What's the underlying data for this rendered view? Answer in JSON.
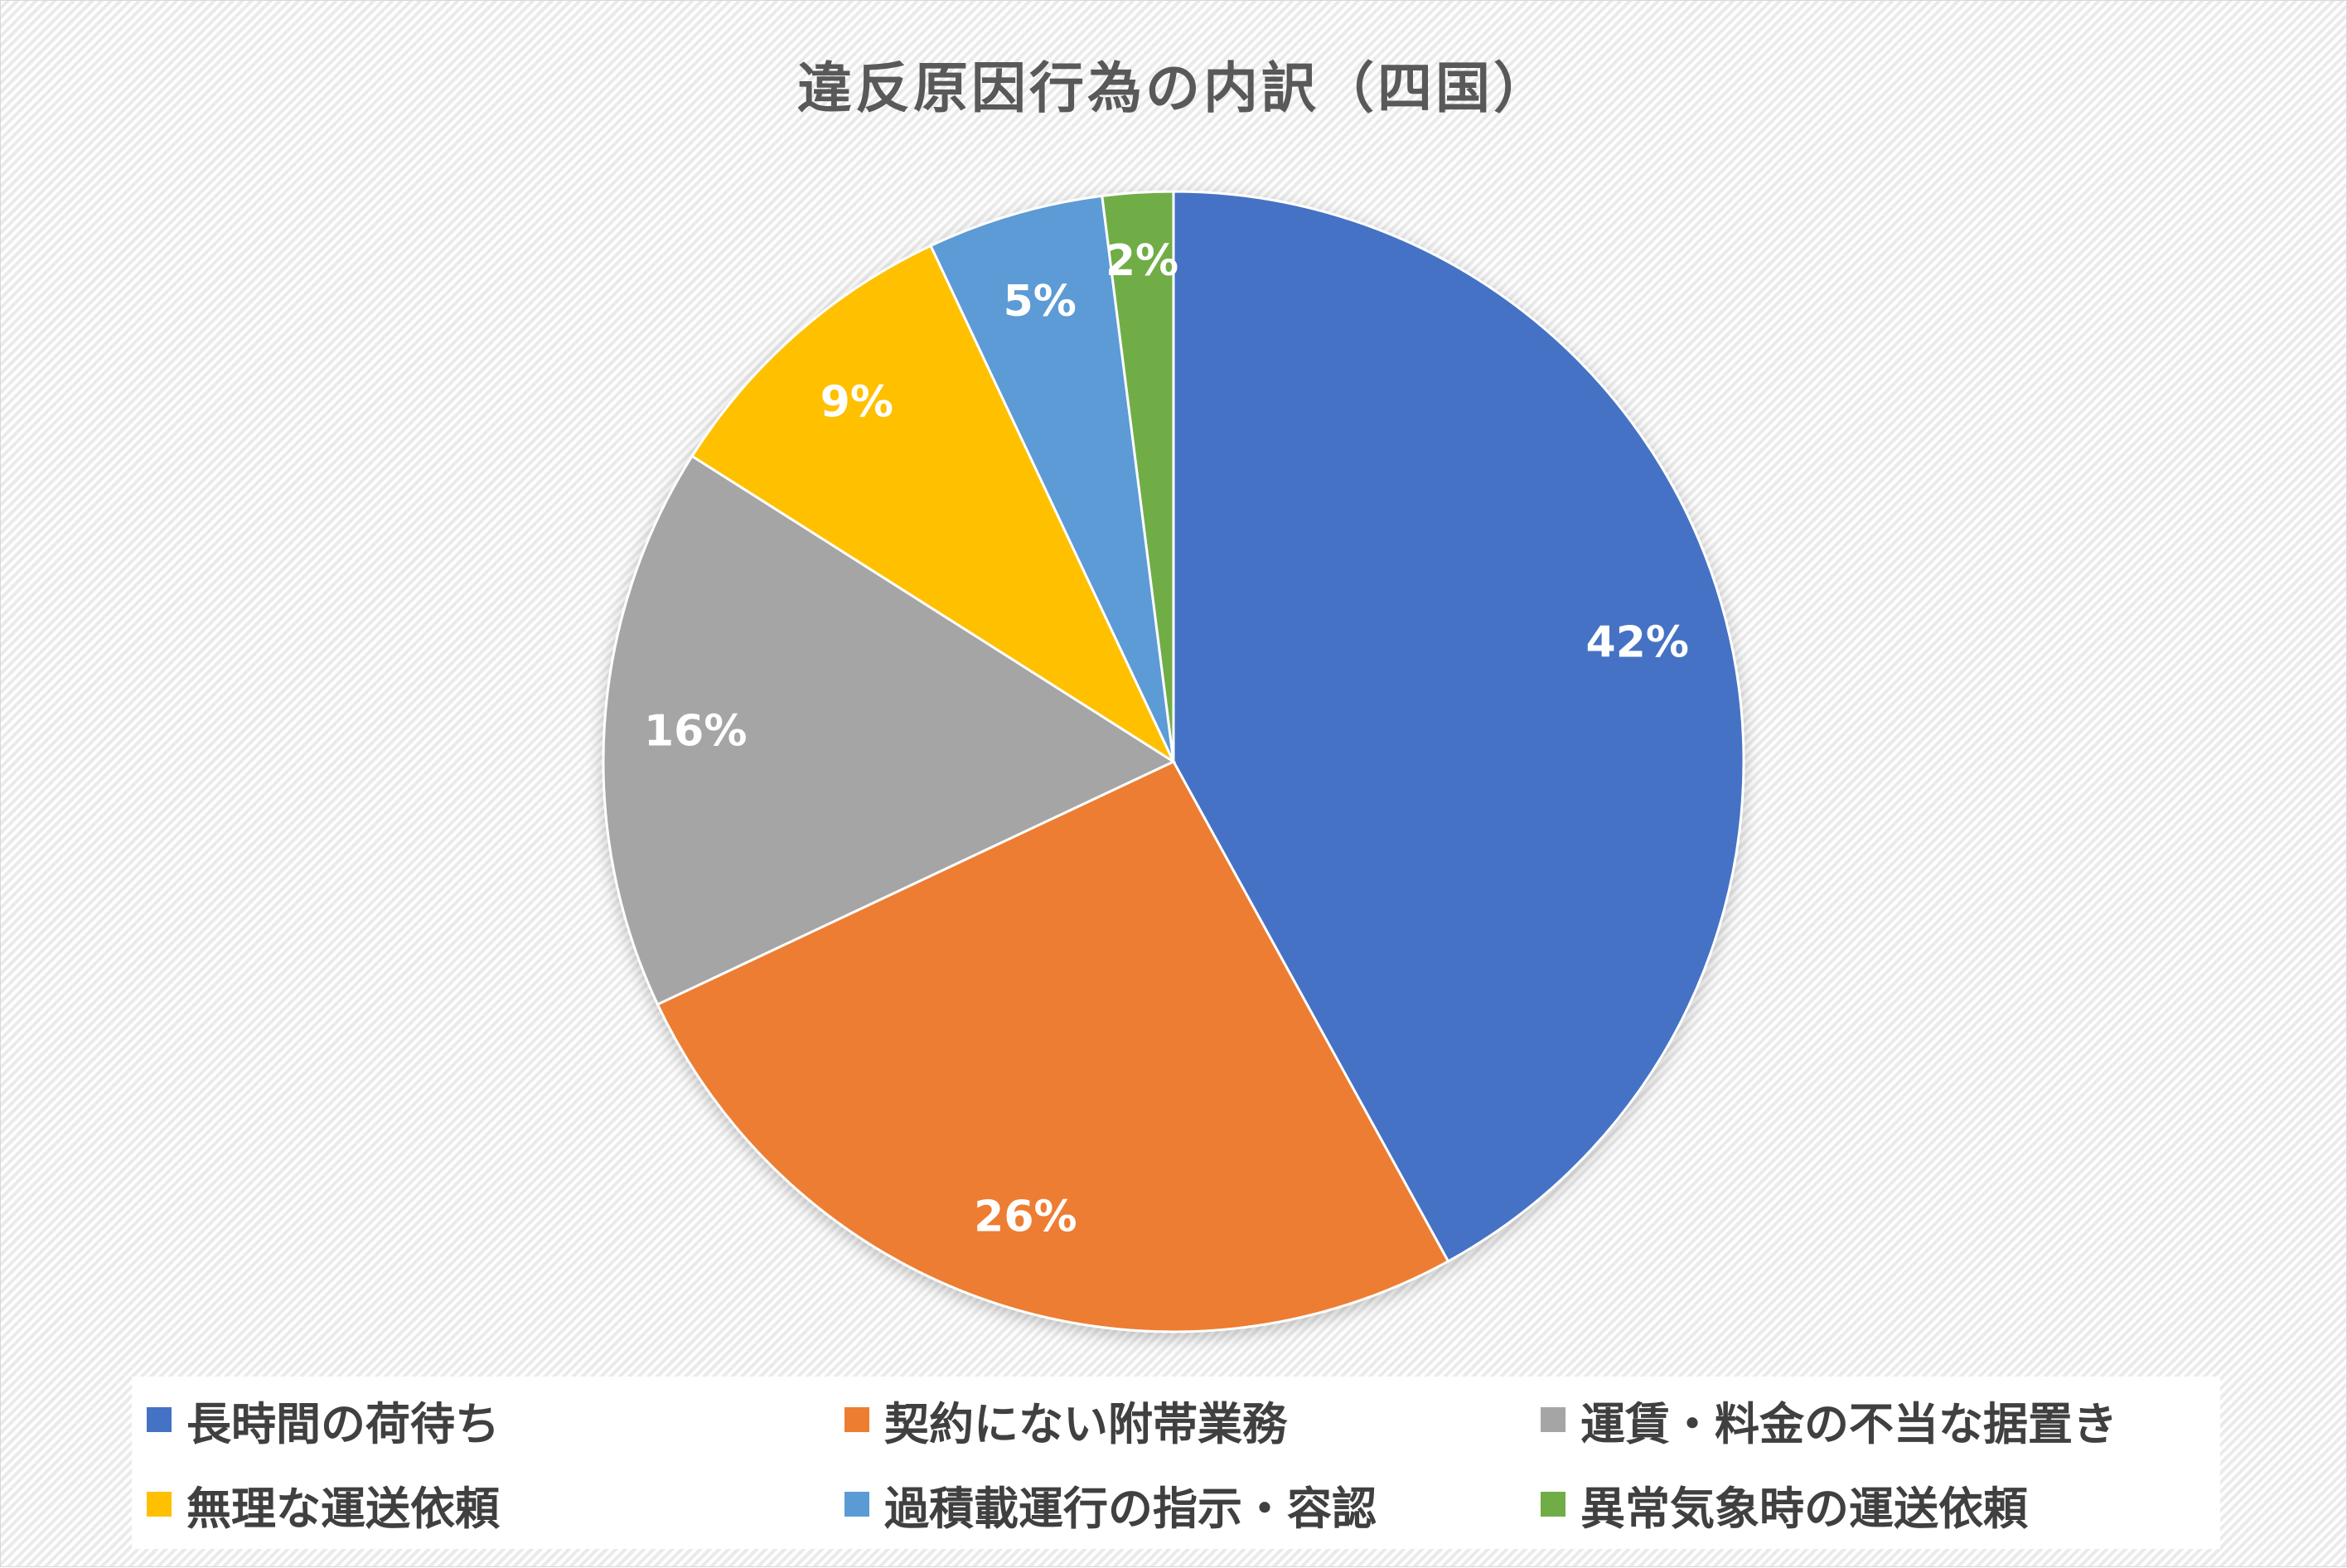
{
  "chart_data": {
    "type": "pie",
    "title": "違反原因行為の内訳（四国）",
    "slices": [
      {
        "name": "長時間の荷待ち",
        "value": 42,
        "label": "42%",
        "color": "#4472C4"
      },
      {
        "name": "契約にない附帯業務",
        "value": 26,
        "label": "26%",
        "color": "#ED7D31"
      },
      {
        "name": "運賃・料金の不当な据置き",
        "value": 16,
        "label": "16%",
        "color": "#A5A5A5"
      },
      {
        "name": "無理な運送依頼",
        "value": 9,
        "label": "9%",
        "color": "#FFC000"
      },
      {
        "name": "過積載運行の指示・容認",
        "value": 5,
        "label": "5%",
        "color": "#5B9BD5"
      },
      {
        "name": "異常気象時の運送依頼",
        "value": 2,
        "label": "2%",
        "color": "#70AD47"
      }
    ],
    "legend_position": "bottom"
  }
}
